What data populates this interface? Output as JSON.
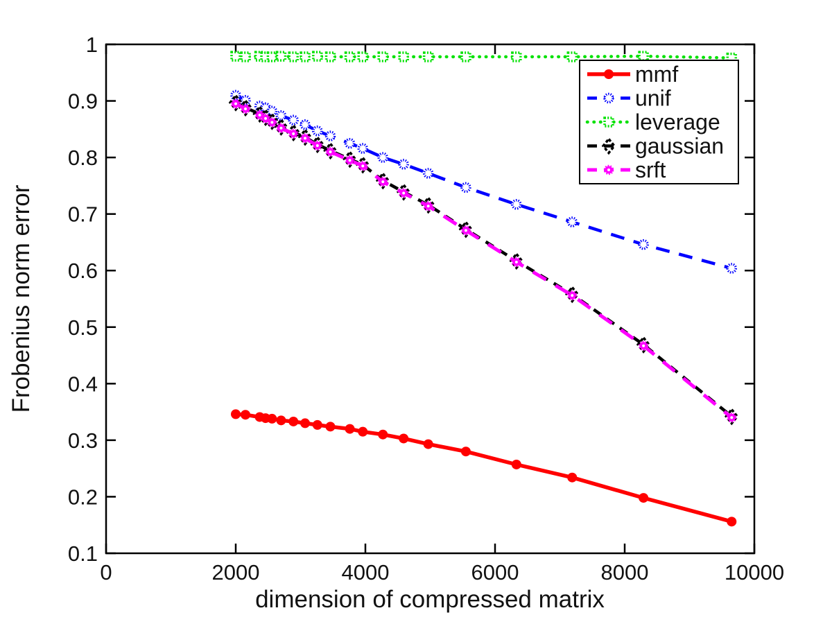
{
  "figure": {
    "background": "#ffffff",
    "axes_color": "#000000",
    "text_color": "#111111"
  },
  "chart_data": {
    "type": "line",
    "title": "",
    "xlabel": "dimension of compressed matrix",
    "ylabel": "Frobenius norm error",
    "xlim": [
      0,
      10000
    ],
    "ylim": [
      0.1,
      1.0
    ],
    "xticks": [
      0,
      2000,
      4000,
      6000,
      8000,
      10000
    ],
    "xtick_labels": [
      "0",
      "2000",
      "4000",
      "6000",
      "8000",
      "10000"
    ],
    "yticks": [
      0.1,
      0.2,
      0.3,
      0.4,
      0.5,
      0.6,
      0.7,
      0.8,
      0.9,
      1.0
    ],
    "ytick_labels": [
      "0.1",
      "0.2",
      "0.3",
      "0.4",
      "0.5",
      "0.6",
      "0.7",
      "0.8",
      "0.9",
      "1"
    ],
    "grid": false,
    "legend_position": "top-right",
    "x": [
      2000,
      2150,
      2370,
      2460,
      2560,
      2700,
      2890,
      3070,
      3260,
      3460,
      3760,
      3960,
      4270,
      4590,
      4970,
      5550,
      6330,
      7190,
      8290,
      9650
    ],
    "series": [
      {
        "name": "mmf",
        "color": "#ff0000",
        "line": "solid",
        "marker": "filled-circle",
        "values": [
          0.346,
          0.345,
          0.341,
          0.339,
          0.338,
          0.335,
          0.333,
          0.33,
          0.327,
          0.324,
          0.32,
          0.315,
          0.31,
          0.303,
          0.293,
          0.28,
          0.257,
          0.234,
          0.198,
          0.156
        ]
      },
      {
        "name": "unif",
        "color": "#0000ff",
        "line": "dashed",
        "marker": "open-circle",
        "values": [
          0.91,
          0.901,
          0.891,
          0.888,
          0.882,
          0.874,
          0.866,
          0.858,
          0.847,
          0.838,
          0.825,
          0.816,
          0.8,
          0.788,
          0.772,
          0.747,
          0.717,
          0.686,
          0.646,
          0.604
        ]
      },
      {
        "name": "leverage",
        "color": "#00e100",
        "line": "dotted",
        "marker": "open-square",
        "values": [
          0.979,
          0.978,
          0.979,
          0.978,
          0.978,
          0.979,
          0.978,
          0.978,
          0.979,
          0.978,
          0.978,
          0.978,
          0.978,
          0.978,
          0.978,
          0.978,
          0.978,
          0.978,
          0.979,
          0.976
        ]
      },
      {
        "name": "gaussian",
        "color": "#000000",
        "line": "dashed",
        "marker": "open-diamond",
        "values": [
          0.897,
          0.888,
          0.877,
          0.871,
          0.864,
          0.854,
          0.844,
          0.836,
          0.823,
          0.812,
          0.797,
          0.787,
          0.759,
          0.739,
          0.716,
          0.673,
          0.617,
          0.558,
          0.469,
          0.342
        ]
      },
      {
        "name": "srft",
        "color": "#ff00ff",
        "line": "dashed",
        "marker": "star",
        "values": [
          0.895,
          0.886,
          0.875,
          0.869,
          0.862,
          0.852,
          0.842,
          0.834,
          0.821,
          0.81,
          0.795,
          0.785,
          0.757,
          0.737,
          0.714,
          0.671,
          0.615,
          0.556,
          0.467,
          0.34
        ]
      }
    ]
  }
}
